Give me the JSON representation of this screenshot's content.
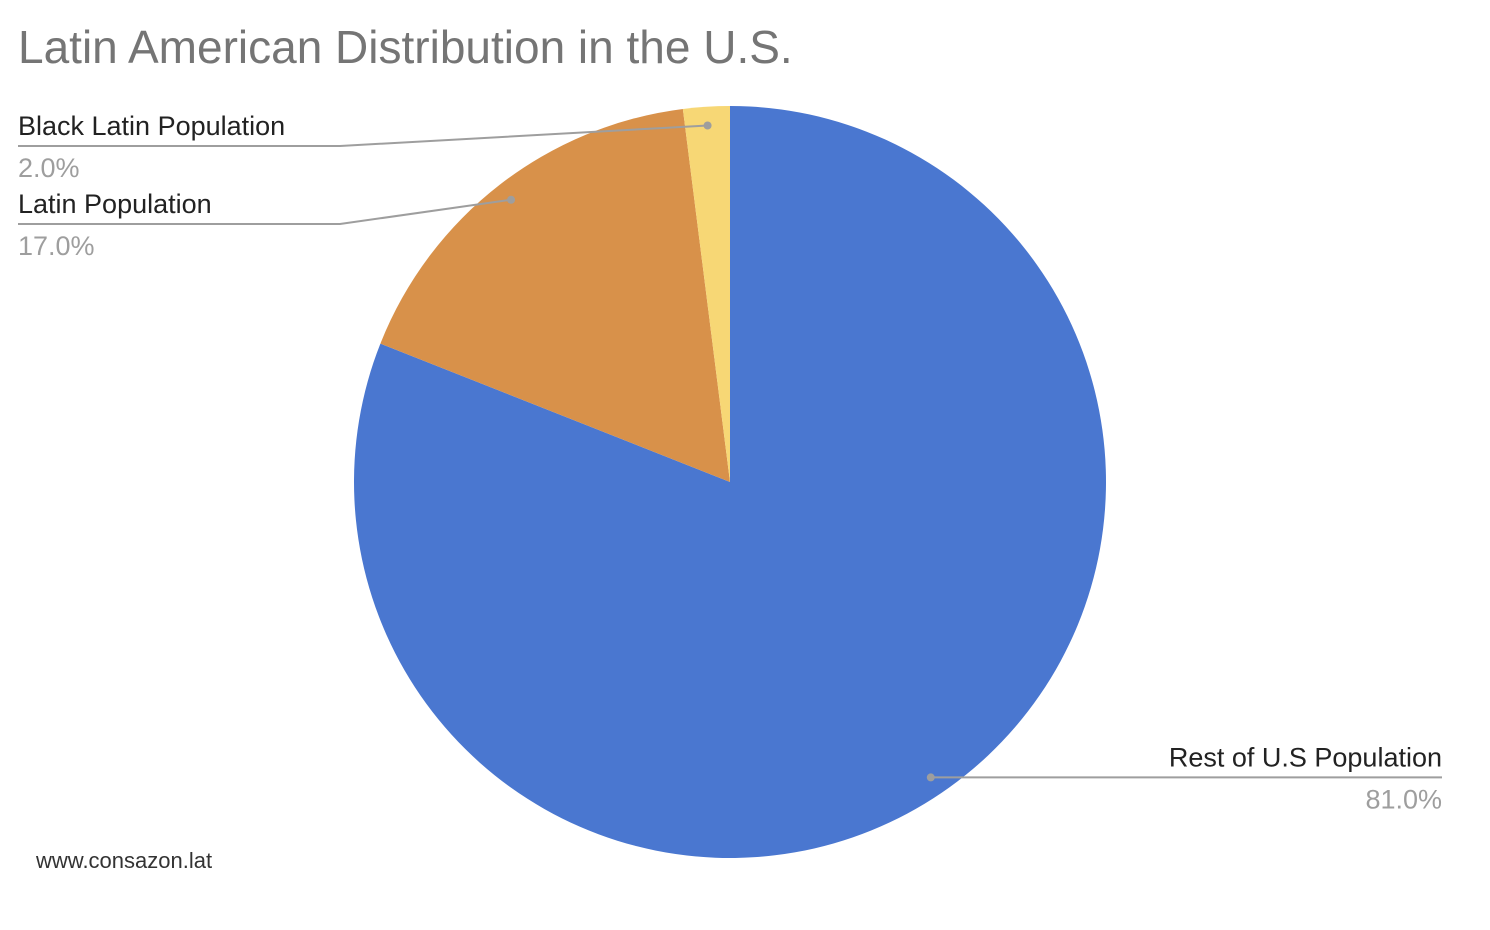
{
  "chart_data": {
    "type": "pie",
    "title": "Latin American Distribution in the U.S.",
    "categories": [
      "Rest of U.S Population",
      "Latin Population",
      "Black Latin Population"
    ],
    "values": [
      81,
      17,
      2
    ],
    "value_labels": [
      "81.0%",
      "17.0%",
      "2.0%"
    ],
    "colors": [
      "#4a77d0",
      "#d8914a",
      "#f7d775"
    ],
    "source": "www.consazon.lat"
  }
}
